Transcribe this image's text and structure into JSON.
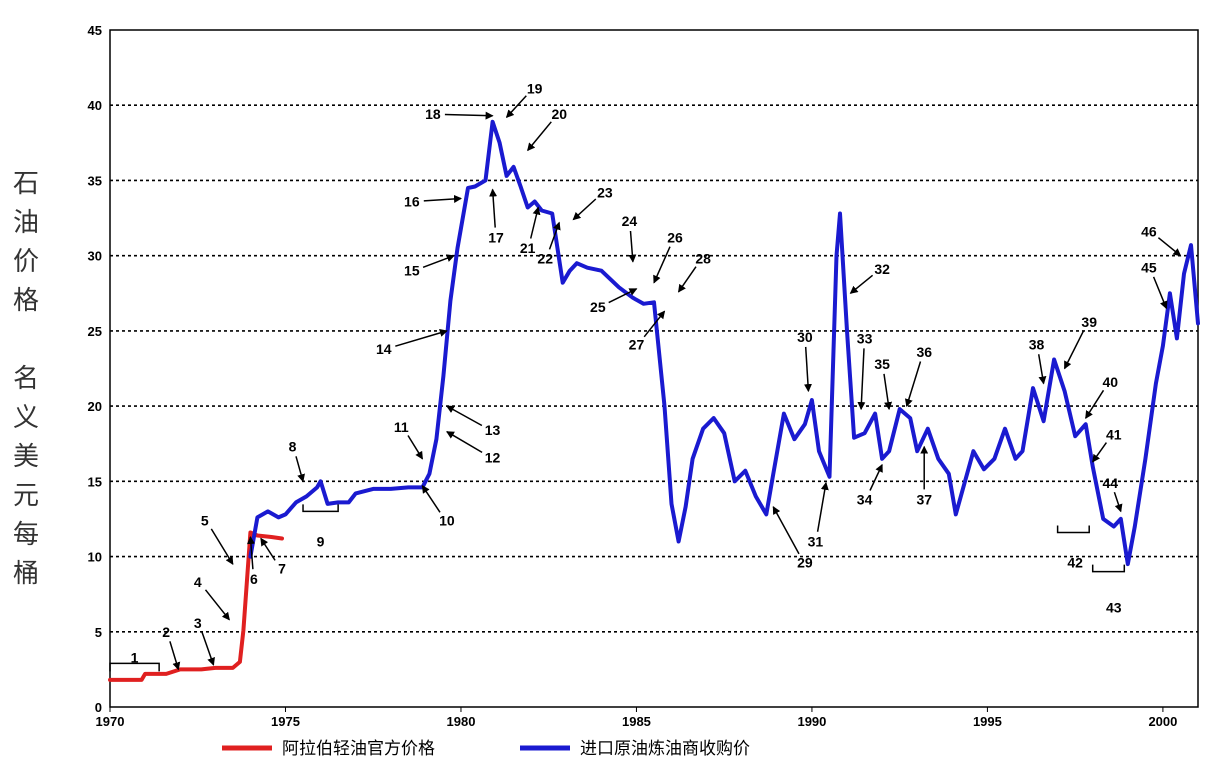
{
  "chart_data": {
    "type": "line",
    "title": "",
    "ylabel": "石油价格 名义美元每桶",
    "ylabel_lines": [
      "石",
      "油",
      "价",
      "格",
      "",
      "名",
      "义",
      "美",
      "元",
      "每",
      "桶"
    ],
    "xlabel": "",
    "xlim": [
      1970,
      2001
    ],
    "ylim": [
      0,
      45
    ],
    "x_ticks": [
      "1970",
      "1975",
      "1980",
      "1985",
      "1990",
      "1995",
      "2000"
    ],
    "y_ticks": [
      "0",
      "5",
      "10",
      "15",
      "20",
      "25",
      "30",
      "35",
      "40",
      "45"
    ],
    "grid": "horizontal dotted",
    "legend_position": "bottom",
    "series": [
      {
        "name": "阿拉伯轻油官方价格",
        "color": "#e02020",
        "x": [
          1970.0,
          1970.9,
          1971.0,
          1971.6,
          1972.0,
          1972.6,
          1973.0,
          1973.5,
          1973.7,
          1973.8,
          1974.0,
          1974.2,
          1974.6,
          1974.9
        ],
        "y": [
          1.8,
          1.8,
          2.2,
          2.2,
          2.5,
          2.5,
          2.6,
          2.6,
          3.0,
          5.1,
          11.6,
          11.4,
          11.3,
          11.2
        ]
      },
      {
        "name": "进口原油炼油商收购价",
        "color": "#1a1ad0",
        "x": [
          1974.0,
          1974.2,
          1974.5,
          1974.8,
          1975.0,
          1975.3,
          1975.6,
          1975.9,
          1976.0,
          1976.2,
          1976.5,
          1976.8,
          1977.0,
          1977.5,
          1978.0,
          1978.5,
          1978.9,
          1979.1,
          1979.3,
          1979.5,
          1979.7,
          1979.9,
          1980.2,
          1980.4,
          1980.7,
          1980.9,
          1981.1,
          1981.3,
          1981.5,
          1981.7,
          1981.9,
          1982.1,
          1982.3,
          1982.6,
          1982.9,
          1983.1,
          1983.3,
          1983.6,
          1984.0,
          1984.5,
          1984.9,
          1985.2,
          1985.5,
          1985.8,
          1986.0,
          1986.2,
          1986.4,
          1986.6,
          1986.9,
          1987.2,
          1987.5,
          1987.8,
          1988.1,
          1988.4,
          1988.7,
          1988.9,
          1989.2,
          1989.5,
          1989.8,
          1990.0,
          1990.2,
          1990.5,
          1990.7,
          1990.8,
          1991.0,
          1991.2,
          1991.5,
          1991.8,
          1992.0,
          1992.2,
          1992.5,
          1992.8,
          1993.0,
          1993.3,
          1993.6,
          1993.9,
          1994.1,
          1994.3,
          1994.6,
          1994.9,
          1995.2,
          1995.5,
          1995.8,
          1996.0,
          1996.3,
          1996.6,
          1996.9,
          1997.2,
          1997.5,
          1997.8,
          1998.0,
          1998.3,
          1998.6,
          1998.8,
          1999.0,
          1999.2,
          1999.5,
          1999.8,
          2000.0,
          2000.2,
          2000.4,
          2000.6,
          2000.8,
          2001.0
        ],
        "y": [
          10.0,
          12.6,
          13.0,
          12.6,
          12.8,
          13.6,
          14.0,
          14.6,
          15.0,
          13.5,
          13.6,
          13.6,
          14.2,
          14.5,
          14.5,
          14.6,
          14.6,
          15.5,
          17.8,
          22.0,
          27.0,
          30.5,
          34.5,
          34.6,
          35.0,
          38.9,
          37.5,
          35.3,
          35.9,
          34.6,
          33.2,
          33.6,
          33.0,
          32.8,
          28.2,
          29.0,
          29.5,
          29.2,
          29.0,
          27.9,
          27.2,
          26.8,
          26.9,
          20.0,
          13.5,
          11.0,
          13.3,
          16.5,
          18.5,
          19.2,
          18.2,
          15.0,
          15.7,
          14.0,
          12.8,
          15.5,
          19.5,
          17.8,
          18.8,
          20.4,
          17.0,
          15.3,
          30.0,
          32.8,
          25.0,
          17.9,
          18.2,
          19.5,
          16.5,
          17.0,
          19.8,
          19.2,
          17.0,
          18.5,
          16.5,
          15.5,
          12.8,
          14.5,
          17.0,
          15.8,
          16.5,
          18.5,
          16.5,
          17.0,
          21.2,
          19.0,
          23.1,
          21.0,
          18.0,
          18.8,
          16.0,
          12.5,
          12.0,
          12.5,
          9.5,
          12.0,
          16.5,
          21.5,
          24.0,
          27.5,
          24.5,
          28.8,
          30.7,
          25.5
        ]
      }
    ],
    "annotations": [
      {
        "label": "1",
        "x": 1970.7,
        "y": 3.3,
        "type": "bracket",
        "bx": [
          1970.0,
          1971.4
        ]
      },
      {
        "label": "2",
        "x": 1971.6,
        "y": 5.0,
        "type": "arrow",
        "tx": 1971.95,
        "ty": 2.5
      },
      {
        "label": "3",
        "x": 1972.5,
        "y": 5.6,
        "type": "arrow",
        "tx": 1972.95,
        "ty": 2.8
      },
      {
        "label": "4",
        "x": 1972.5,
        "y": 8.3,
        "type": "arrow",
        "tx": 1973.4,
        "ty": 5.8
      },
      {
        "label": "5",
        "x": 1972.7,
        "y": 12.4,
        "type": "arrow",
        "tx": 1973.5,
        "ty": 9.5
      },
      {
        "label": "6",
        "x": 1974.1,
        "y": 8.5,
        "type": "arrow",
        "tx": 1974.0,
        "ty": 11.3
      },
      {
        "label": "7",
        "x": 1974.9,
        "y": 9.2,
        "type": "arrow",
        "tx": 1974.3,
        "ty": 11.2
      },
      {
        "label": "8",
        "x": 1975.2,
        "y": 17.3,
        "type": "arrow",
        "tx": 1975.5,
        "ty": 15.0
      },
      {
        "label": "9",
        "x": 1976.0,
        "y": 11.0,
        "type": "bracket",
        "bx": [
          1975.5,
          1976.5
        ]
      },
      {
        "label": "10",
        "x": 1979.6,
        "y": 12.4,
        "type": "arrow",
        "tx": 1978.9,
        "ty": 14.7
      },
      {
        "label": "11",
        "x": 1978.3,
        "y": 18.6,
        "type": "arrow",
        "tx": 1978.9,
        "ty": 16.5
      },
      {
        "label": "12",
        "x": 1980.9,
        "y": 16.6,
        "type": "arrow",
        "tx": 1979.6,
        "ty": 18.3
      },
      {
        "label": "13",
        "x": 1980.9,
        "y": 18.4,
        "type": "arrow",
        "tx": 1979.6,
        "ty": 20.0
      },
      {
        "label": "14",
        "x": 1977.8,
        "y": 23.8,
        "type": "arrow",
        "tx": 1979.6,
        "ty": 25.0
      },
      {
        "label": "15",
        "x": 1978.6,
        "y": 29.0,
        "type": "arrow",
        "tx": 1979.8,
        "ty": 30.0
      },
      {
        "label": "16",
        "x": 1978.6,
        "y": 33.6,
        "type": "arrow",
        "tx": 1980.0,
        "ty": 33.8
      },
      {
        "label": "17",
        "x": 1981.0,
        "y": 31.2,
        "type": "arrow",
        "tx": 1980.9,
        "ty": 34.4
      },
      {
        "label": "18",
        "x": 1979.2,
        "y": 39.4,
        "type": "arrow",
        "tx": 1980.9,
        "ty": 39.3
      },
      {
        "label": "19",
        "x": 1982.1,
        "y": 41.1,
        "type": "arrow",
        "tx": 1981.3,
        "ty": 39.2
      },
      {
        "label": "20",
        "x": 1982.8,
        "y": 39.4,
        "type": "arrow",
        "tx": 1981.9,
        "ty": 37.0
      },
      {
        "label": "21",
        "x": 1981.9,
        "y": 30.5,
        "type": "arrow",
        "tx": 1982.2,
        "ty": 33.2
      },
      {
        "label": "22",
        "x": 1982.4,
        "y": 29.8,
        "type": "arrow",
        "tx": 1982.8,
        "ty": 32.2
      },
      {
        "label": "23",
        "x": 1984.1,
        "y": 34.2,
        "type": "arrow",
        "tx": 1983.2,
        "ty": 32.4
      },
      {
        "label": "24",
        "x": 1984.8,
        "y": 32.3,
        "type": "arrow",
        "tx": 1984.9,
        "ty": 29.6
      },
      {
        "label": "25",
        "x": 1983.9,
        "y": 26.6,
        "type": "arrow",
        "tx": 1985.0,
        "ty": 27.8
      },
      {
        "label": "26",
        "x": 1986.1,
        "y": 31.2,
        "type": "arrow",
        "tx": 1985.5,
        "ty": 28.2
      },
      {
        "label": "27",
        "x": 1985.0,
        "y": 24.1,
        "type": "arrow",
        "tx": 1985.8,
        "ty": 26.3
      },
      {
        "label": "28",
        "x": 1986.9,
        "y": 29.8,
        "type": "arrow",
        "tx": 1986.2,
        "ty": 27.6
      },
      {
        "label": "29",
        "x": 1989.8,
        "y": 9.6,
        "type": "arrow",
        "tx": 1988.9,
        "ty": 13.3
      },
      {
        "label": "30",
        "x": 1989.8,
        "y": 24.6,
        "type": "arrow",
        "tx": 1989.9,
        "ty": 21.0
      },
      {
        "label": "31",
        "x": 1990.1,
        "y": 11.0,
        "type": "arrow",
        "tx": 1990.4,
        "ty": 14.9
      },
      {
        "label": "32",
        "x": 1992.0,
        "y": 29.1,
        "type": "arrow",
        "tx": 1991.1,
        "ty": 27.5
      },
      {
        "label": "33",
        "x": 1991.5,
        "y": 24.5,
        "type": "arrow",
        "tx": 1991.4,
        "ty": 19.8
      },
      {
        "label": "34",
        "x": 1991.5,
        "y": 13.8,
        "type": "arrow",
        "tx": 1992.0,
        "ty": 16.1
      },
      {
        "label": "35",
        "x": 1992.0,
        "y": 22.8,
        "type": "arrow",
        "tx": 1992.2,
        "ty": 19.8
      },
      {
        "label": "36",
        "x": 1993.2,
        "y": 23.6,
        "type": "arrow",
        "tx": 1992.7,
        "ty": 20.0
      },
      {
        "label": "37",
        "x": 1993.2,
        "y": 13.8,
        "type": "arrow",
        "tx": 1993.2,
        "ty": 17.3
      },
      {
        "label": "38",
        "x": 1996.4,
        "y": 24.1,
        "type": "arrow",
        "tx": 1996.6,
        "ty": 21.5
      },
      {
        "label": "39",
        "x": 1997.9,
        "y": 25.6,
        "type": "arrow",
        "tx": 1997.2,
        "ty": 22.5
      },
      {
        "label": "40",
        "x": 1998.5,
        "y": 21.6,
        "type": "arrow",
        "tx": 1997.8,
        "ty": 19.2
      },
      {
        "label": "41",
        "x": 1998.6,
        "y": 18.1,
        "type": "arrow",
        "tx": 1998.0,
        "ty": 16.3
      },
      {
        "label": "42",
        "x": 1997.5,
        "y": 9.6,
        "type": "bracket",
        "bx": [
          1997.0,
          1997.9
        ]
      },
      {
        "label": "43",
        "x": 1998.6,
        "y": 6.6,
        "type": "bracket",
        "bx": [
          1998.0,
          1998.9
        ]
      },
      {
        "label": "44",
        "x": 1998.5,
        "y": 14.9,
        "type": "arrow",
        "tx": 1998.8,
        "ty": 13.0
      },
      {
        "label": "45",
        "x": 1999.6,
        "y": 29.2,
        "type": "arrow",
        "tx": 2000.1,
        "ty": 26.5
      },
      {
        "label": "46",
        "x": 1999.6,
        "y": 31.6,
        "type": "arrow",
        "tx": 2000.5,
        "ty": 30.0
      }
    ]
  }
}
